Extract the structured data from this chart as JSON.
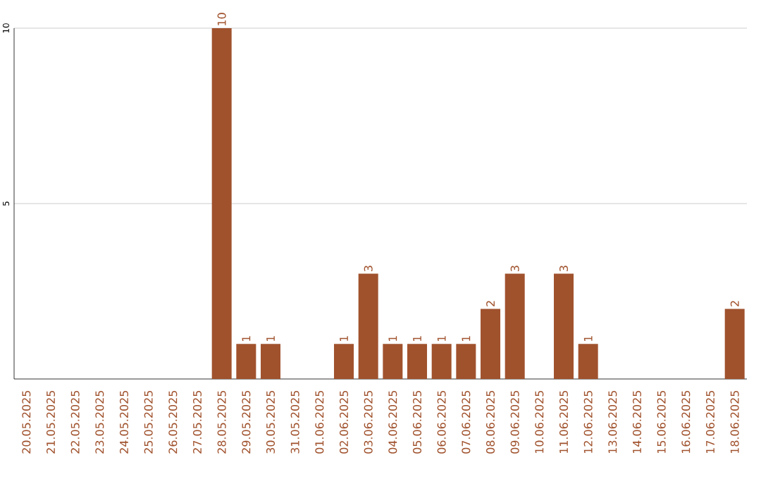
{
  "chart_data": {
    "type": "bar",
    "categories": [
      "20.05.2025",
      "21.05.2025",
      "22.05.2025",
      "23.05.2025",
      "24.05.2025",
      "25.05.2025",
      "26.05.2025",
      "27.05.2025",
      "28.05.2025",
      "29.05.2025",
      "30.05.2025",
      "31.05.2025",
      "01.06.2025",
      "02.06.2025",
      "03.06.2025",
      "04.06.2025",
      "05.06.2025",
      "06.06.2025",
      "07.06.2025",
      "08.06.2025",
      "09.06.2025",
      "10.06.2025",
      "11.06.2025",
      "12.06.2025",
      "13.06.2025",
      "14.06.2025",
      "15.06.2025",
      "16.06.2025",
      "17.06.2025",
      "18.06.2025"
    ],
    "values": [
      0,
      0,
      0,
      0,
      0,
      0,
      0,
      0,
      10,
      1,
      1,
      0,
      0,
      1,
      3,
      1,
      1,
      1,
      1,
      2,
      3,
      0,
      3,
      1,
      0,
      0,
      0,
      0,
      0,
      2
    ],
    "value_labels": [
      null,
      null,
      null,
      null,
      null,
      null,
      null,
      null,
      "10",
      "1",
      "1",
      null,
      null,
      "1",
      "3",
      "1",
      "1",
      "1",
      "1",
      "2",
      "3",
      null,
      "3",
      "1",
      null,
      null,
      null,
      null,
      null,
      "2"
    ],
    "color": "#a0522d",
    "ylim": [
      0,
      10
    ],
    "yticks": [
      5,
      10
    ],
    "grid": "y"
  }
}
